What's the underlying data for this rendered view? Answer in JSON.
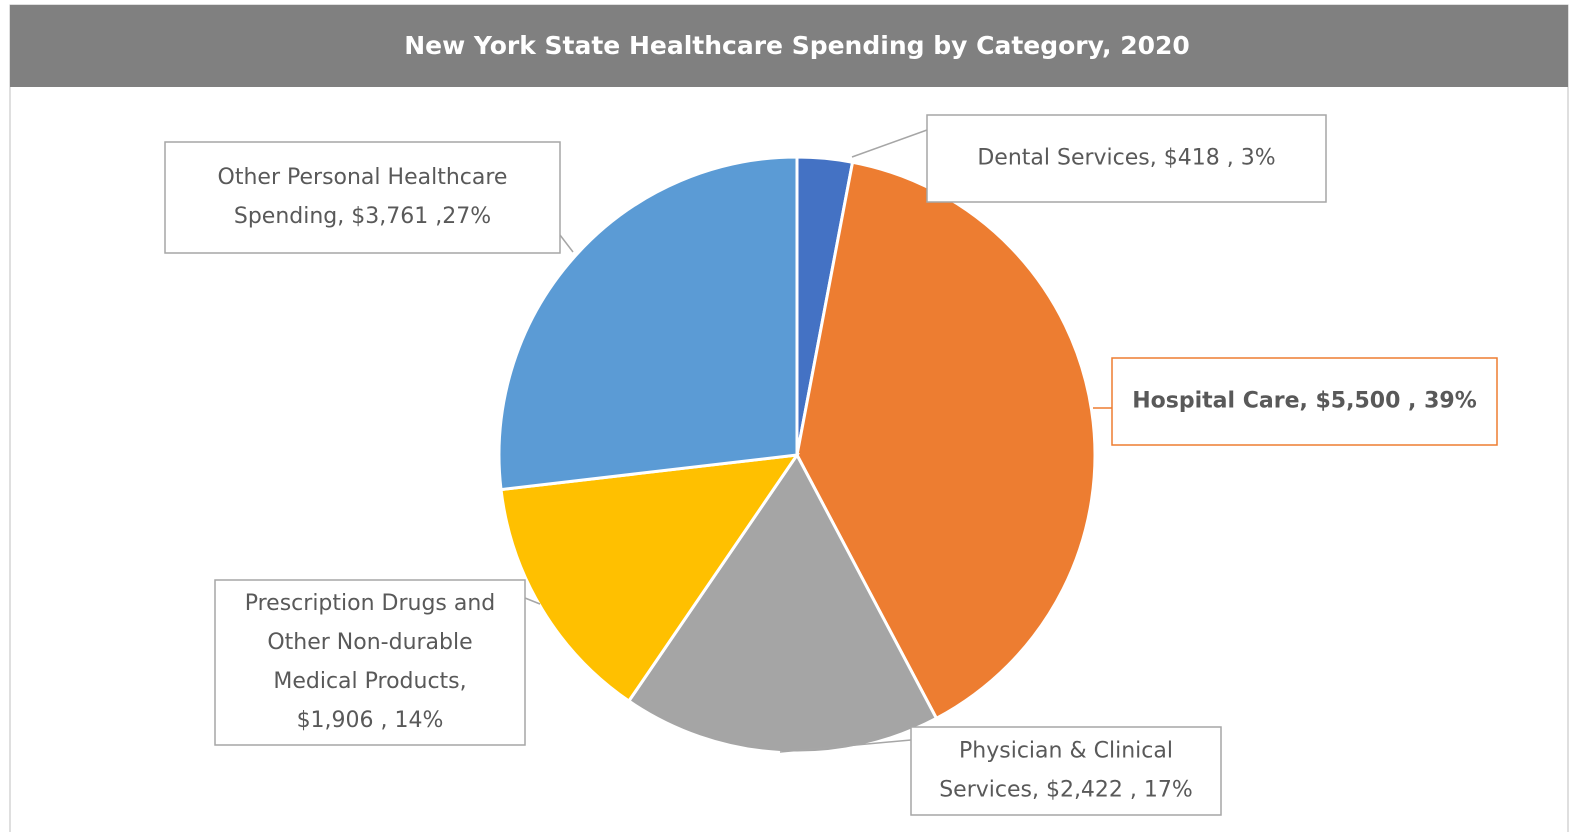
{
  "chart_data": {
    "type": "pie",
    "title": "New York State Healthcare Spending by Category, 2020",
    "values": [
      418,
      5500,
      2422,
      1906,
      3761
    ],
    "value_labels": [
      [
        "Dental Services,  $418 , 3%"
      ],
      [
        "Hospital Care,  $5,500 , 39%"
      ],
      [
        "Physician & Clinical",
        "Services,  $2,422 , 17%"
      ],
      [
        "Prescription Drugs and",
        "Other Non-durable",
        "Medical Products,",
        "$1,906 , 14%"
      ],
      [
        "Other Personal Healthcare",
        "Spending, $3,761 ,27%"
      ]
    ],
    "colors": [
      "#4472c4",
      "#ed7d31",
      "#a5a5a5",
      "#ffc000",
      "#5b9bd5"
    ],
    "highlight": 1
  }
}
